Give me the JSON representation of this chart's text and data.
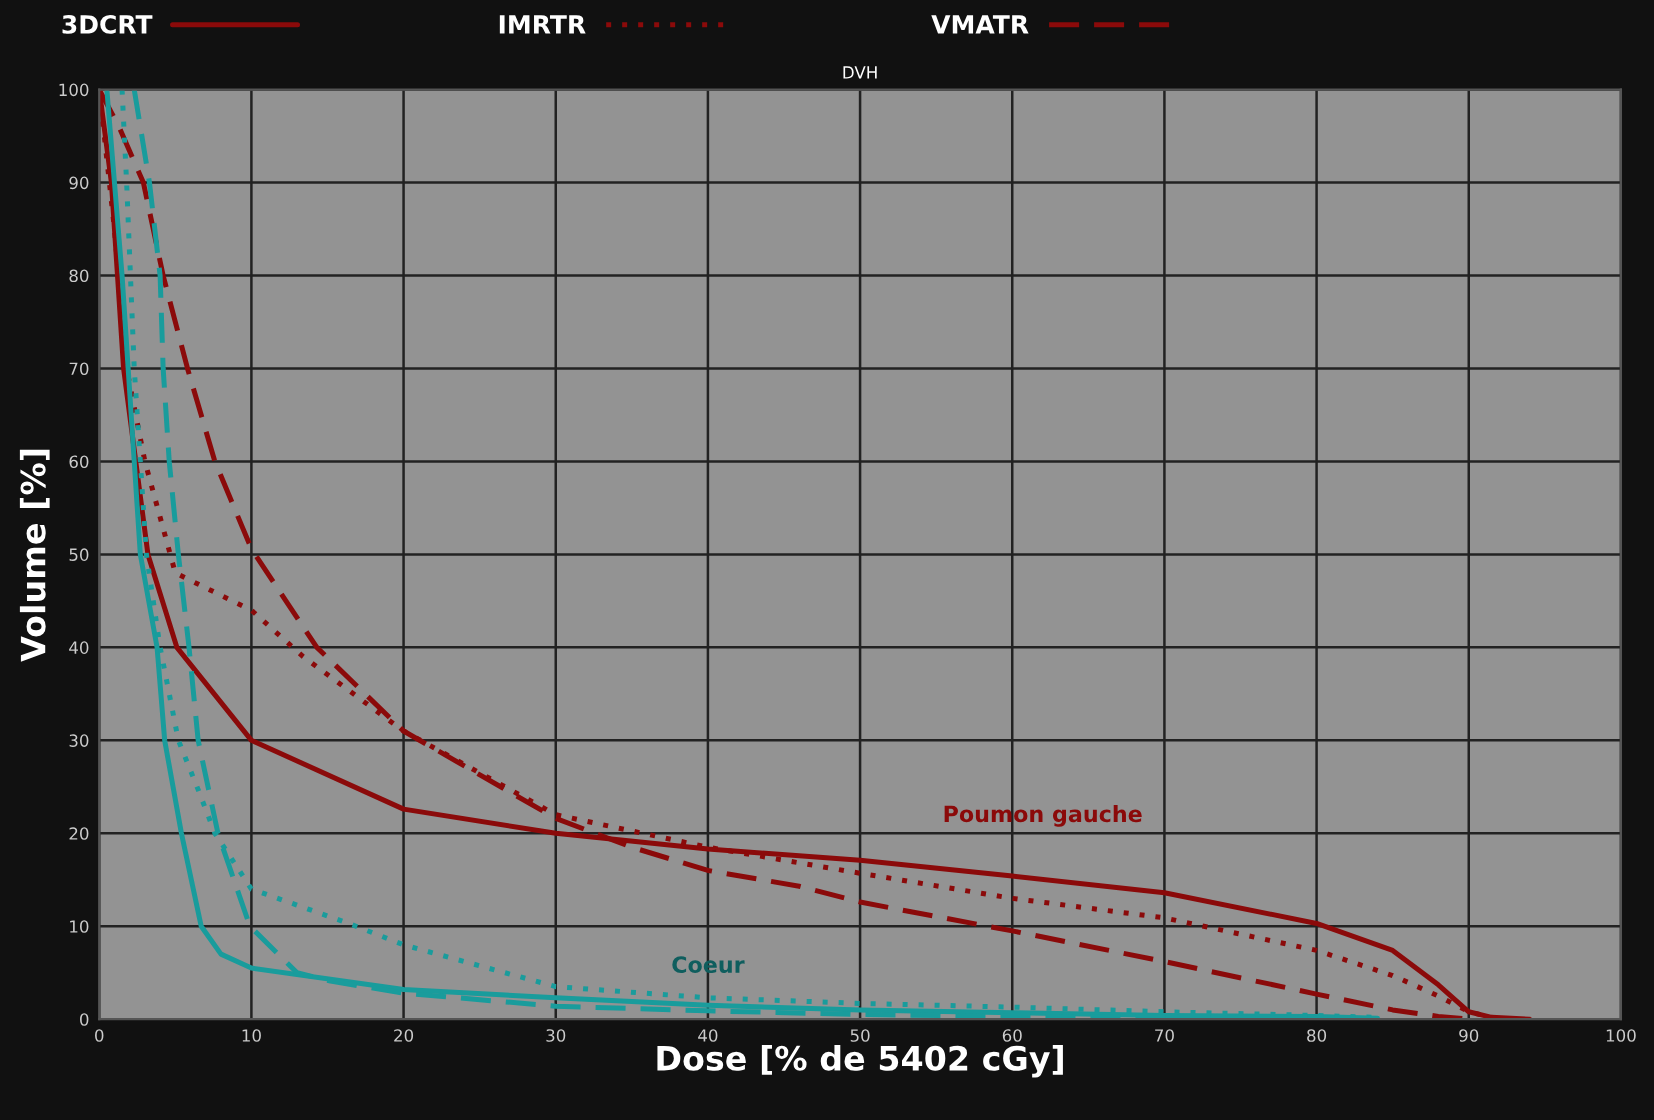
{
  "chart_data": {
    "type": "line",
    "title": "DVH",
    "xlabel": "Dose [% de 5402 cGy]",
    "ylabel": "Volume [%]",
    "xlim": [
      0,
      100
    ],
    "ylim": [
      0,
      100
    ],
    "xticks": [
      0,
      10,
      20,
      30,
      40,
      50,
      60,
      70,
      80,
      90,
      100
    ],
    "yticks": [
      0,
      10,
      20,
      30,
      40,
      50,
      60,
      70,
      80,
      90,
      100
    ],
    "grid": true,
    "legend": "top",
    "series": [
      {
        "name": "3DCRT",
        "color": "#8b0a0a",
        "line_style": "solid",
        "x": [
          0,
          0.8,
          1.6,
          3.2,
          5.1,
          10,
          20,
          30,
          40,
          50,
          60,
          70,
          80,
          85,
          88,
          90,
          91.5,
          94
        ],
        "values": [
          100,
          90,
          70,
          50,
          40,
          30,
          22.6,
          20,
          18.3,
          17.1,
          15.4,
          13.6,
          10.3,
          7.4,
          3.7,
          0.8,
          0.2,
          0
        ]
      },
      {
        "name": "IMRTR",
        "color": "#8b0a0a",
        "line_style": "dotted",
        "x": [
          0,
          1,
          1.8,
          3,
          5,
          10,
          13.4,
          20,
          30,
          40,
          50,
          60,
          70,
          80,
          85,
          88,
          90,
          92
        ],
        "values": [
          100,
          85,
          70,
          60,
          48,
          44,
          39,
          31,
          22,
          18.5,
          15.7,
          13,
          10.9,
          7.4,
          4.7,
          2.5,
          0.8,
          0
        ]
      },
      {
        "name": "VMATR",
        "color": "#8b0a0a",
        "line_style": "dashed",
        "x": [
          0,
          1.3,
          2.9,
          4.2,
          5.8,
          7.6,
          10,
          14.3,
          20,
          30,
          35,
          40,
          46,
          50,
          60,
          70,
          80,
          85,
          88,
          90
        ],
        "values": [
          100,
          96,
          90,
          80,
          70,
          60,
          50.6,
          40,
          31,
          21.6,
          18.5,
          16,
          14.3,
          12.6,
          9.5,
          6.2,
          2.7,
          1,
          0.3,
          0
        ]
      },
      {
        "color": "#199c9c",
        "line_style": "solid",
        "x": [
          0.5,
          1.5,
          2.3,
          2.7,
          3.8,
          4.3,
          5.4,
          6.7,
          8,
          10,
          20,
          30,
          40,
          50,
          60,
          70,
          80,
          84
        ],
        "values": [
          100,
          80,
          60,
          50,
          40,
          30,
          20,
          10,
          7,
          5.5,
          3.2,
          2.3,
          1.5,
          1,
          0.7,
          0.4,
          0.3,
          0.1
        ]
      },
      {
        "color": "#199c9c",
        "line_style": "dotted",
        "x": [
          1.5,
          1.8,
          2.3,
          3.1,
          4,
          5.2,
          6.5,
          7.6,
          10,
          16.4,
          20,
          30,
          40,
          50,
          60,
          70,
          80,
          84
        ],
        "values": [
          100,
          90,
          70,
          50,
          40,
          30,
          24.7,
          20,
          14,
          10.3,
          8,
          3.5,
          2.3,
          1.7,
          1.3,
          0.8,
          0.4,
          0.2
        ]
      },
      {
        "color": "#199c9c",
        "line_style": "dashed",
        "x": [
          2.3,
          3.3,
          4,
          4.2,
          4.6,
          5.2,
          5.9,
          6.5,
          7.8,
          9.9,
          13,
          15.2,
          20,
          30,
          40,
          50,
          60,
          70,
          80
        ],
        "values": [
          100,
          90,
          80,
          70,
          60,
          50,
          40,
          30,
          20,
          10,
          5,
          4.1,
          2.8,
          1.4,
          0.9,
          0.5,
          0.3,
          0.2,
          0.1
        ]
      }
    ],
    "annotations": [
      "Poumon gauche",
      "Coeur"
    ]
  }
}
